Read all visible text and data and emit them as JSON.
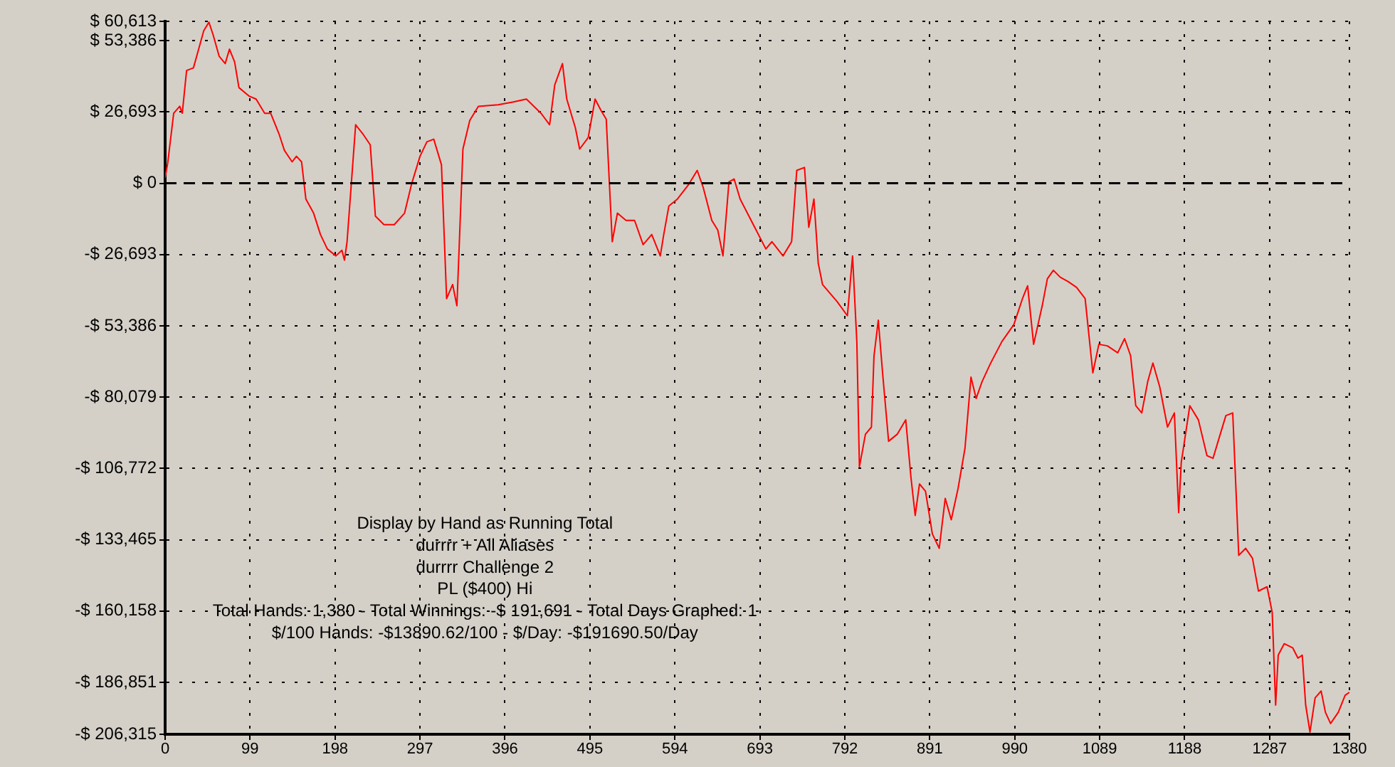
{
  "chart_data": {
    "type": "line",
    "marker": "none",
    "line_style": "solid",
    "grid": true,
    "legend": false,
    "x": [
      0,
      3,
      10,
      17,
      20,
      25,
      33,
      40,
      45,
      51,
      56,
      63,
      70,
      75,
      81,
      86,
      98,
      106,
      116,
      123,
      133,
      139,
      148,
      153,
      159,
      164,
      173,
      181,
      189,
      199,
      206,
      209,
      212,
      222,
      231,
      239,
      245,
      255,
      267,
      279,
      287,
      297,
      305,
      313,
      322,
      328,
      335,
      340,
      347,
      355,
      365,
      388,
      405,
      421,
      438,
      448,
      454,
      463,
      468,
      478,
      483,
      493,
      501,
      508,
      514,
      521,
      527,
      537,
      547,
      557,
      567,
      577,
      581,
      587,
      597,
      610,
      620,
      627,
      637,
      644,
      650,
      657,
      663,
      670,
      687,
      700,
      707,
      720,
      730,
      736,
      745,
      750,
      756,
      761,
      766,
      783,
      795,
      801,
      806,
      809,
      816,
      823,
      826,
      831,
      836,
      843,
      853,
      863,
      869,
      874,
      879,
      886,
      894,
      902,
      909,
      916,
      924,
      932,
      939,
      945,
      952,
      962,
      975,
      989,
      999,
      1005,
      1012,
      1022,
      1028,
      1035,
      1043,
      1052,
      1062,
      1072,
      1081,
      1088,
      1098,
      1110,
      1118,
      1125,
      1131,
      1138,
      1145,
      1151,
      1159,
      1168,
      1176,
      1181,
      1184,
      1194,
      1204,
      1214,
      1221,
      1227,
      1236,
      1244,
      1251,
      1259,
      1267,
      1274,
      1284,
      1290,
      1294,
      1297,
      1304,
      1314,
      1320,
      1325,
      1329,
      1334,
      1340,
      1347,
      1352,
      1358,
      1367,
      1375,
      1380
    ],
    "series": [
      {
        "color": "#ff0000",
        "values": [
          2100,
          7500,
          26200,
          28800,
          26200,
          42200,
          43200,
          51300,
          57100,
          60300,
          55500,
          47500,
          44800,
          50200,
          45400,
          35800,
          32600,
          31500,
          26200,
          26200,
          18200,
          12300,
          8000,
          10100,
          8000,
          -5900,
          -11200,
          -19200,
          -24600,
          -27200,
          -25100,
          -28800,
          -21900,
          21900,
          18200,
          14400,
          -12300,
          -15500,
          -15500,
          -11200,
          -500,
          10100,
          15500,
          16500,
          6900,
          -43200,
          -37900,
          -45900,
          12800,
          23500,
          28800,
          29400,
          30400,
          31500,
          26200,
          21900,
          36800,
          44800,
          31500,
          20800,
          12800,
          17100,
          31500,
          27200,
          24000,
          -21900,
          -11200,
          -13900,
          -13900,
          -23000,
          -19200,
          -27200,
          -19200,
          -8500,
          -5900,
          -500,
          4800,
          -1600,
          -13900,
          -17600,
          -27200,
          500,
          1600,
          -5900,
          -16500,
          -24600,
          -21900,
          -27200,
          -21900,
          4800,
          5900,
          -16500,
          -5900,
          -29900,
          -37900,
          -44300,
          -49600,
          -27200,
          -59300,
          -106200,
          -94000,
          -91300,
          -64600,
          -51300,
          -71000,
          -96600,
          -94000,
          -88600,
          -110000,
          -124400,
          -112600,
          -115300,
          -131300,
          -136700,
          -118000,
          -126000,
          -114200,
          -99300,
          -72600,
          -80600,
          -74200,
          -67300,
          -59300,
          -52900,
          -43200,
          -38400,
          -60300,
          -45900,
          -35800,
          -32600,
          -35200,
          -36800,
          -39000,
          -43200,
          -71000,
          -60300,
          -60900,
          -63500,
          -58200,
          -64600,
          -83300,
          -86000,
          -74200,
          -67300,
          -76300,
          -91300,
          -86000,
          -123300,
          -104600,
          -83300,
          -88600,
          -102000,
          -103000,
          -96600,
          -87000,
          -86000,
          -139300,
          -136700,
          -140400,
          -152700,
          -151100,
          -160700,
          -195400,
          -176700,
          -172400,
          -174000,
          -177800,
          -176700,
          -195400,
          -205500,
          -192700,
          -190100,
          -198100,
          -202300,
          -198100,
          -191700,
          -190600
        ]
      }
    ],
    "xlim": [
      0,
      1380
    ],
    "xticks": [
      0,
      99,
      198,
      297,
      396,
      495,
      594,
      693,
      792,
      891,
      990,
      1089,
      1188,
      1287,
      1380
    ],
    "ylim": [
      -206315,
      60613
    ],
    "yticks": [
      {
        "value": 60613,
        "label": "$ 60,613"
      },
      {
        "value": 53386,
        "label": "$ 53,386"
      },
      {
        "value": 26693,
        "label": "$ 26,693"
      },
      {
        "value": 0,
        "label": "$ 0"
      },
      {
        "value": -26693,
        "label": "-$ 26,693"
      },
      {
        "value": -53386,
        "label": "-$ 53,386"
      },
      {
        "value": -80079,
        "label": "-$ 80,079"
      },
      {
        "value": -106772,
        "label": "-$ 106,772"
      },
      {
        "value": -133465,
        "label": "-$ 133,465"
      },
      {
        "value": -160158,
        "label": "-$ 160,158"
      },
      {
        "value": -186851,
        "label": "-$ 186,851"
      },
      {
        "value": -206315,
        "label": "-$ 206,315"
      }
    ],
    "ref_lines": [
      {
        "axis": "y",
        "value": 0,
        "color": "#000000",
        "line_style": "dashed"
      }
    ],
    "annotations": [
      "Display by Hand as Running Total",
      "durrrr + All Aliases",
      "durrrr Challenge 2",
      "PL ($400) Hi",
      "Total Hands: 1,380 - Total Winnings: -$ 191,691 - Total Days Graphed: 1",
      "$/100 Hands: -$13890.62/100 - $/Day: -$191690.50/Day"
    ]
  }
}
